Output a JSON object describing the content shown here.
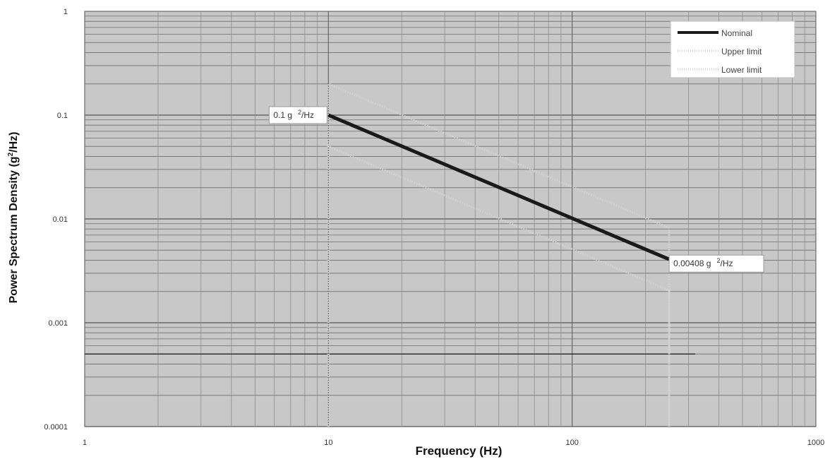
{
  "chart_data": {
    "type": "line",
    "title": "",
    "xlabel": "Frequency (Hz)",
    "ylabel_parts": {
      "before": "Power Spectrum Density (g",
      "sup": "2",
      "after": "/Hz)"
    },
    "x_scale": "log",
    "y_scale": "log",
    "xlim": [
      1,
      1000
    ],
    "ylim": [
      0.0001,
      1
    ],
    "x_ticks": [
      {
        "value": 1,
        "label": "1"
      },
      {
        "value": 10,
        "label": "10"
      },
      {
        "value": 100,
        "label": "100"
      },
      {
        "value": 1000,
        "label": "1000"
      }
    ],
    "y_ticks": [
      {
        "value": 1,
        "label": "1"
      },
      {
        "value": 0.1,
        "label": "0.1"
      },
      {
        "value": 0.01,
        "label": "0.01"
      },
      {
        "value": 0.001,
        "label": "0.001"
      },
      {
        "value": 0.0001,
        "label": "0.0001"
      }
    ],
    "grid": true,
    "legend_position": "top-right",
    "series": [
      {
        "name": "Nominal",
        "color": "#1a1a1a",
        "style": "solid",
        "points": [
          [
            10,
            0.1
          ],
          [
            250,
            0.00408
          ]
        ]
      },
      {
        "name": "Upper limit",
        "color": "#d4d4d4",
        "style": "dotted",
        "points": [
          [
            10,
            0.0001
          ],
          [
            10,
            0.2
          ],
          [
            250,
            0.0082
          ],
          [
            250,
            0.0001
          ]
        ]
      },
      {
        "name": "Lower limit",
        "color": "#d4d4d4",
        "style": "dotted",
        "points": [
          [
            10,
            0.0001
          ],
          [
            10,
            0.05
          ],
          [
            250,
            0.00205
          ],
          [
            250,
            0.0001
          ]
        ]
      }
    ],
    "extra_lines": [
      {
        "points": [
          [
            1,
            0.0005
          ],
          [
            320,
            0.0005
          ]
        ],
        "color": "#1a1a1a"
      }
    ],
    "annotations": [
      {
        "x": 10,
        "y": 0.1,
        "anchor": "left",
        "value": "0.1 g",
        "sup": "2",
        "unit": "/Hz"
      },
      {
        "x": 250,
        "y": 0.00408,
        "anchor": "right",
        "value": "0.00408 g",
        "sup": "2",
        "unit": "/Hz"
      }
    ]
  }
}
